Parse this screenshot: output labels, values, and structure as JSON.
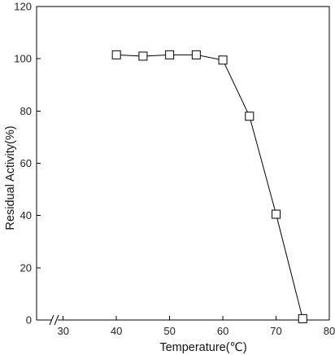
{
  "chart_data": {
    "type": "line",
    "xlabel": "Temperature(℃)",
    "ylabel": "Residual Activity(%)",
    "xlim": [
      25,
      80
    ],
    "ylim": [
      0,
      120
    ],
    "x_ticks": [
      "30",
      "40",
      "50",
      "60",
      "70",
      "80"
    ],
    "y_ticks": [
      "0",
      "20",
      "40",
      "60",
      "80",
      "100",
      "120"
    ],
    "x_axis_break": true,
    "grid": false,
    "marker": "square-open",
    "series": [
      {
        "x": [
          40,
          45,
          50,
          55,
          60,
          65,
          70,
          75
        ],
        "y": [
          101.5,
          101,
          101.5,
          101.5,
          99.5,
          78,
          40.5,
          0.5
        ]
      }
    ]
  }
}
